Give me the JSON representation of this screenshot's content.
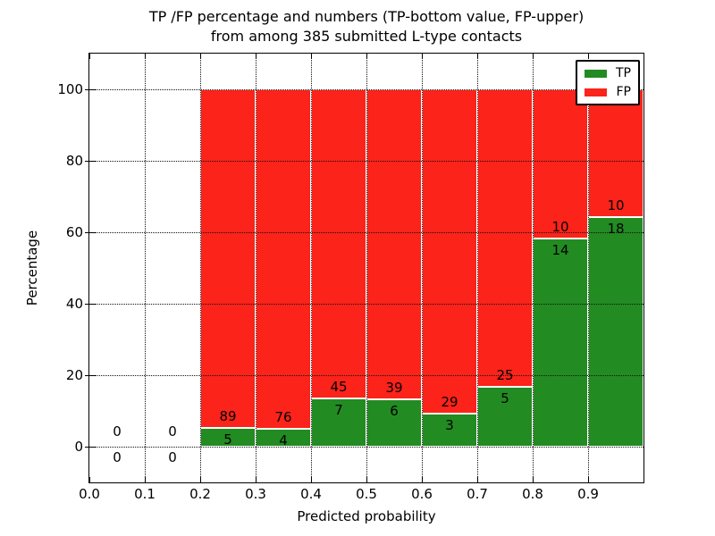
{
  "title": {
    "line1": "TP /FP percentage and numbers (TP-bottom value, FP-upper)",
    "line2": "from among 385 submitted L-type contacts"
  },
  "axes": {
    "xlabel": "Predicted probability",
    "ylabel": "Percentage",
    "x_tick_labels": [
      "0.0",
      "0.1",
      "0.2",
      "0.3",
      "0.4",
      "0.5",
      "0.6",
      "0.7",
      "0.8",
      "0.9"
    ],
    "y_tick_labels": [
      "0",
      "20",
      "40",
      "60",
      "80",
      "100"
    ],
    "y_tick_values": [
      0,
      20,
      40,
      60,
      80,
      100
    ]
  },
  "legend": {
    "items": [
      {
        "label": "TP",
        "color": "#228b22"
      },
      {
        "label": "FP",
        "color": "#fb231a"
      }
    ],
    "position": "upper right"
  },
  "colors": {
    "tp": "#228b22",
    "fp": "#fb231a",
    "bar_edge": "#ffffff",
    "grid": "#111111"
  },
  "chart_data": {
    "type": "bar",
    "stacked": true,
    "normalized_to_percent": true,
    "title": "TP /FP percentage and numbers (TP-bottom value, FP-upper) from among 385 submitted L-type contacts",
    "xlabel": "Predicted probability",
    "ylabel": "Percentage",
    "xlim": [
      0.0,
      1.0
    ],
    "ylim": [
      -10,
      110
    ],
    "grid": "dotted",
    "legend_position": "upper right",
    "total_contacts": 385,
    "bin_width": 0.1,
    "bin_starts": [
      0.0,
      0.1,
      0.2,
      0.3,
      0.4,
      0.5,
      0.6,
      0.7,
      0.8,
      0.9
    ],
    "series": [
      {
        "name": "TP",
        "color": "#228b22",
        "counts": [
          0,
          0,
          5,
          4,
          7,
          6,
          3,
          5,
          14,
          18
        ],
        "percentages": [
          0,
          0,
          5.32,
          5.0,
          13.46,
          13.33,
          9.38,
          16.67,
          58.33,
          64.29
        ]
      },
      {
        "name": "FP",
        "color": "#fb231a",
        "counts": [
          0,
          0,
          89,
          76,
          45,
          39,
          29,
          25,
          10,
          10
        ],
        "percentages": [
          0,
          0,
          94.68,
          95.0,
          86.54,
          86.67,
          90.62,
          83.33,
          41.67,
          35.71
        ]
      }
    ],
    "annotations_note": "FP count printed above the TP/FP boundary, TP count below it; bins with no bar show 0 above and 0 below the zero line"
  }
}
